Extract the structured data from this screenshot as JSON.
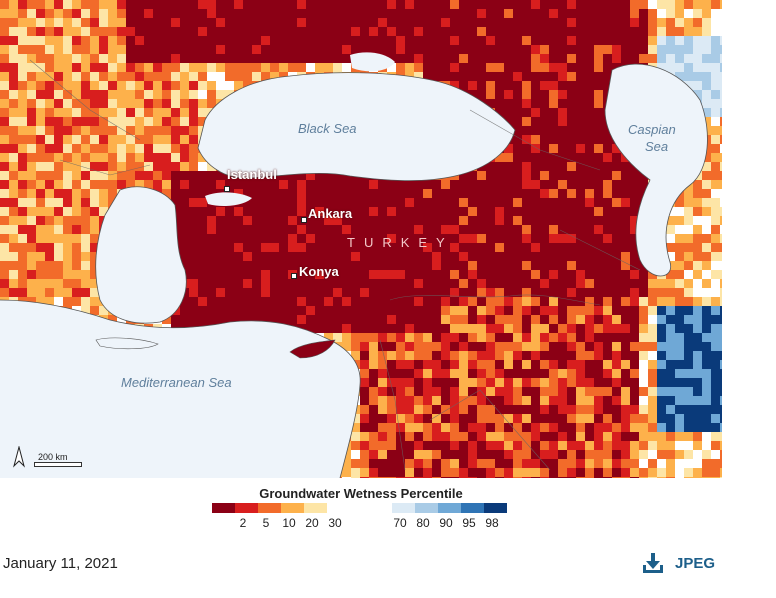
{
  "map": {
    "labels": {
      "black_sea": "Black Sea",
      "caspian_line1": "Caspian",
      "caspian_line2": "Sea",
      "mediterranean": "Mediterranean Sea",
      "istanbul": "Istanbul",
      "ankara": "Ankara",
      "konya": "Konya",
      "country": "TURKEY"
    },
    "scale_text": "200 km",
    "north_icon": "north-arrow-icon",
    "colors": {
      "water": "#eef4fa",
      "very_dry": "#8b0015",
      "dry": "#d81e1e",
      "moderately_dry": "#f26b2a",
      "slightly_dry": "#fdb14b",
      "near_normal_dry": "#fde5a6",
      "near_normal_wet": "#dceaf5",
      "slightly_wet": "#a9cbe6",
      "moderately_wet": "#6fa8d6",
      "wet": "#2f74b5",
      "very_wet": "#0a3a7a",
      "no_data": "#ffffff"
    }
  },
  "legend": {
    "title": "Groundwater Wetness Percentile",
    "dry_colors": [
      "#8b0015",
      "#d81e1e",
      "#f26b2a",
      "#fdb14b",
      "#fde5a6"
    ],
    "wet_colors": [
      "#dceaf5",
      "#a9cbe6",
      "#6fa8d6",
      "#2f74b5",
      "#0a3a7a"
    ],
    "dry_ticks": [
      "2",
      "5",
      "10",
      "20",
      "30"
    ],
    "wet_ticks": [
      "70",
      "80",
      "90",
      "95",
      "98"
    ]
  },
  "footer": {
    "date": "January 11, 2021",
    "download_label": "JPEG",
    "download_icon": "download-icon"
  }
}
